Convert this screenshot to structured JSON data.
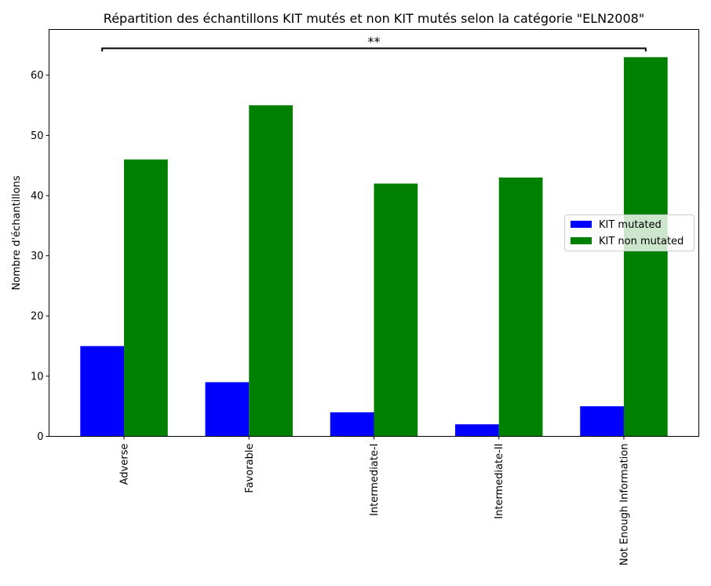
{
  "chart_data": {
    "type": "bar",
    "title": "Répartition des échantillons KIT mutés et non KIT mutés selon la catégorie \"ELN2008\"",
    "xlabel": "",
    "ylabel": "Nombre d'échantillons",
    "categories": [
      "Adverse",
      "Favorable",
      "Intermediate-I",
      "Intermediate-II",
      "Not Enough Information"
    ],
    "series": [
      {
        "name": "KIT mutated",
        "color": "#0000ff",
        "values": [
          15,
          9,
          4,
          2,
          5
        ]
      },
      {
        "name": "KIT non mutated",
        "color": "#008000",
        "values": [
          46,
          55,
          42,
          43,
          63
        ]
      }
    ],
    "ylim": [
      0,
      67.6
    ],
    "yticks": [
      0,
      10,
      20,
      30,
      40,
      50,
      60
    ],
    "legend_position": "center-right",
    "grid": false,
    "annotation": {
      "text": "**",
      "from_category": "Adverse",
      "to_category": "Not Enough Information"
    }
  }
}
